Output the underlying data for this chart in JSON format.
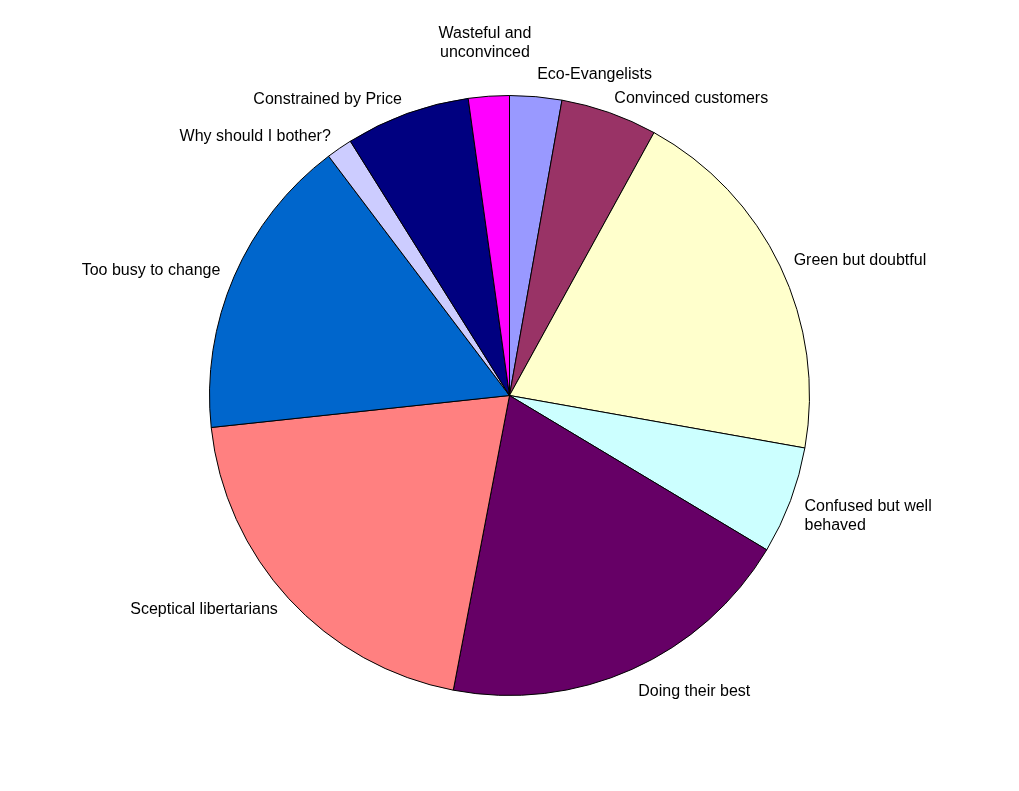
{
  "chart_data": {
    "type": "pie",
    "categories": [
      "Eco-Evangelists",
      "Convinced customers",
      "Green but doubtful",
      "Confused but well behaved",
      "Doing their best",
      "Sceptical libertarians",
      "Too busy to change",
      "Why should I bother?",
      "Constrained by Price",
      "Wasteful and unconvinced"
    ],
    "values": [
      2.8,
      5.2,
      19.8,
      5.8,
      19.4,
      20.3,
      16.4,
      1.4,
      6.7,
      2.2
    ],
    "colors": [
      "#9999ff",
      "#993366",
      "#ffffcc",
      "#ccffff",
      "#660066",
      "#ff8080",
      "#0066cc",
      "#ccccff",
      "#000080",
      "#ff00ff"
    ]
  }
}
